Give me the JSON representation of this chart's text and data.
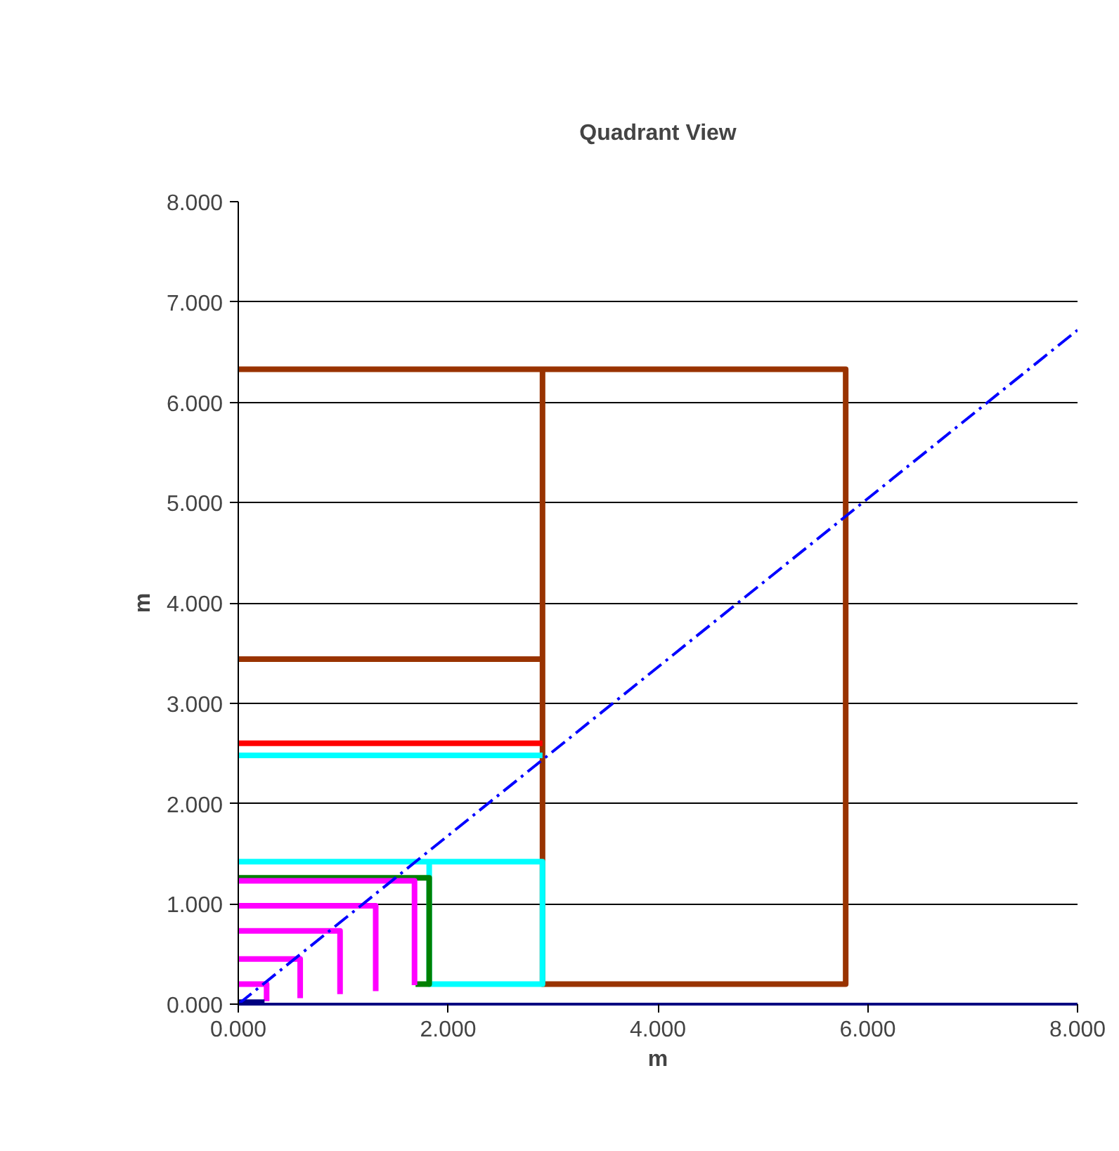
{
  "chart_data": {
    "type": "line",
    "title": "Quadrant View",
    "xlabel": "m",
    "ylabel": "m",
    "xlim": [
      0,
      8
    ],
    "ylim": [
      0,
      8
    ],
    "xticks": [
      {
        "value": 0,
        "label": "0.000"
      },
      {
        "value": 2,
        "label": "2.000"
      },
      {
        "value": 4,
        "label": "4.000"
      },
      {
        "value": 6,
        "label": "6.000"
      },
      {
        "value": 8,
        "label": "8.000"
      }
    ],
    "yticks": [
      {
        "value": 0,
        "label": "0.000"
      },
      {
        "value": 1,
        "label": "1.000"
      },
      {
        "value": 2,
        "label": "2.000"
      },
      {
        "value": 3,
        "label": "3.000"
      },
      {
        "value": 4,
        "label": "4.000"
      },
      {
        "value": 5,
        "label": "5.000"
      },
      {
        "value": 6,
        "label": "6.000"
      },
      {
        "value": 7,
        "label": "7.000"
      },
      {
        "value": 8,
        "label": "8.000"
      }
    ],
    "grid": "y",
    "marker": "none",
    "series": [
      {
        "color": "#993300",
        "x": [
          0,
          5.79,
          5.79,
          2.9,
          2.9
        ],
        "values": [
          6.33,
          6.33,
          0.2,
          0.2,
          6.33
        ]
      },
      {
        "color": "#993300",
        "x": [
          0,
          2.9
        ],
        "values": [
          3.44,
          3.44
        ]
      },
      {
        "color": "#ff0000",
        "x": [
          0,
          2.9
        ],
        "values": [
          2.6,
          2.6
        ]
      },
      {
        "color": "#00ffff",
        "x": [
          0,
          2.9
        ],
        "values": [
          2.48,
          2.48
        ]
      },
      {
        "color": "#00ffff",
        "x": [
          0,
          2.9,
          2.9,
          1.82,
          1.82
        ],
        "values": [
          1.42,
          1.42,
          0.2,
          0.2,
          1.4
        ]
      },
      {
        "color": "#008000",
        "x": [
          0,
          1.82,
          1.82,
          1.69
        ],
        "values": [
          1.26,
          1.26,
          0.2,
          0.2
        ]
      },
      {
        "color": "#ff00ff",
        "x": [
          0,
          1.68,
          1.68
        ],
        "values": [
          1.23,
          1.23,
          0.19
        ]
      },
      {
        "color": "#ff00ff",
        "x": [
          0,
          1.31,
          1.31
        ],
        "values": [
          0.98,
          0.98,
          0.13
        ]
      },
      {
        "color": "#ff00ff",
        "x": [
          0,
          0.97,
          0.97
        ],
        "values": [
          0.73,
          0.73,
          0.1
        ]
      },
      {
        "color": "#ff00ff",
        "x": [
          0,
          0.59,
          0.59
        ],
        "values": [
          0.45,
          0.45,
          0.06
        ]
      },
      {
        "color": "#ff00ff",
        "x": [
          0,
          0.27,
          0.27
        ],
        "values": [
          0.2,
          0.2,
          0.03
        ]
      },
      {
        "color": "#000080",
        "x": [
          0,
          0.25
        ],
        "values": [
          0.02,
          0.02
        ]
      },
      {
        "color": "#0000ff",
        "line_style": "dashdot",
        "x": [
          0,
          8
        ],
        "values": [
          0,
          6.72
        ]
      }
    ]
  }
}
